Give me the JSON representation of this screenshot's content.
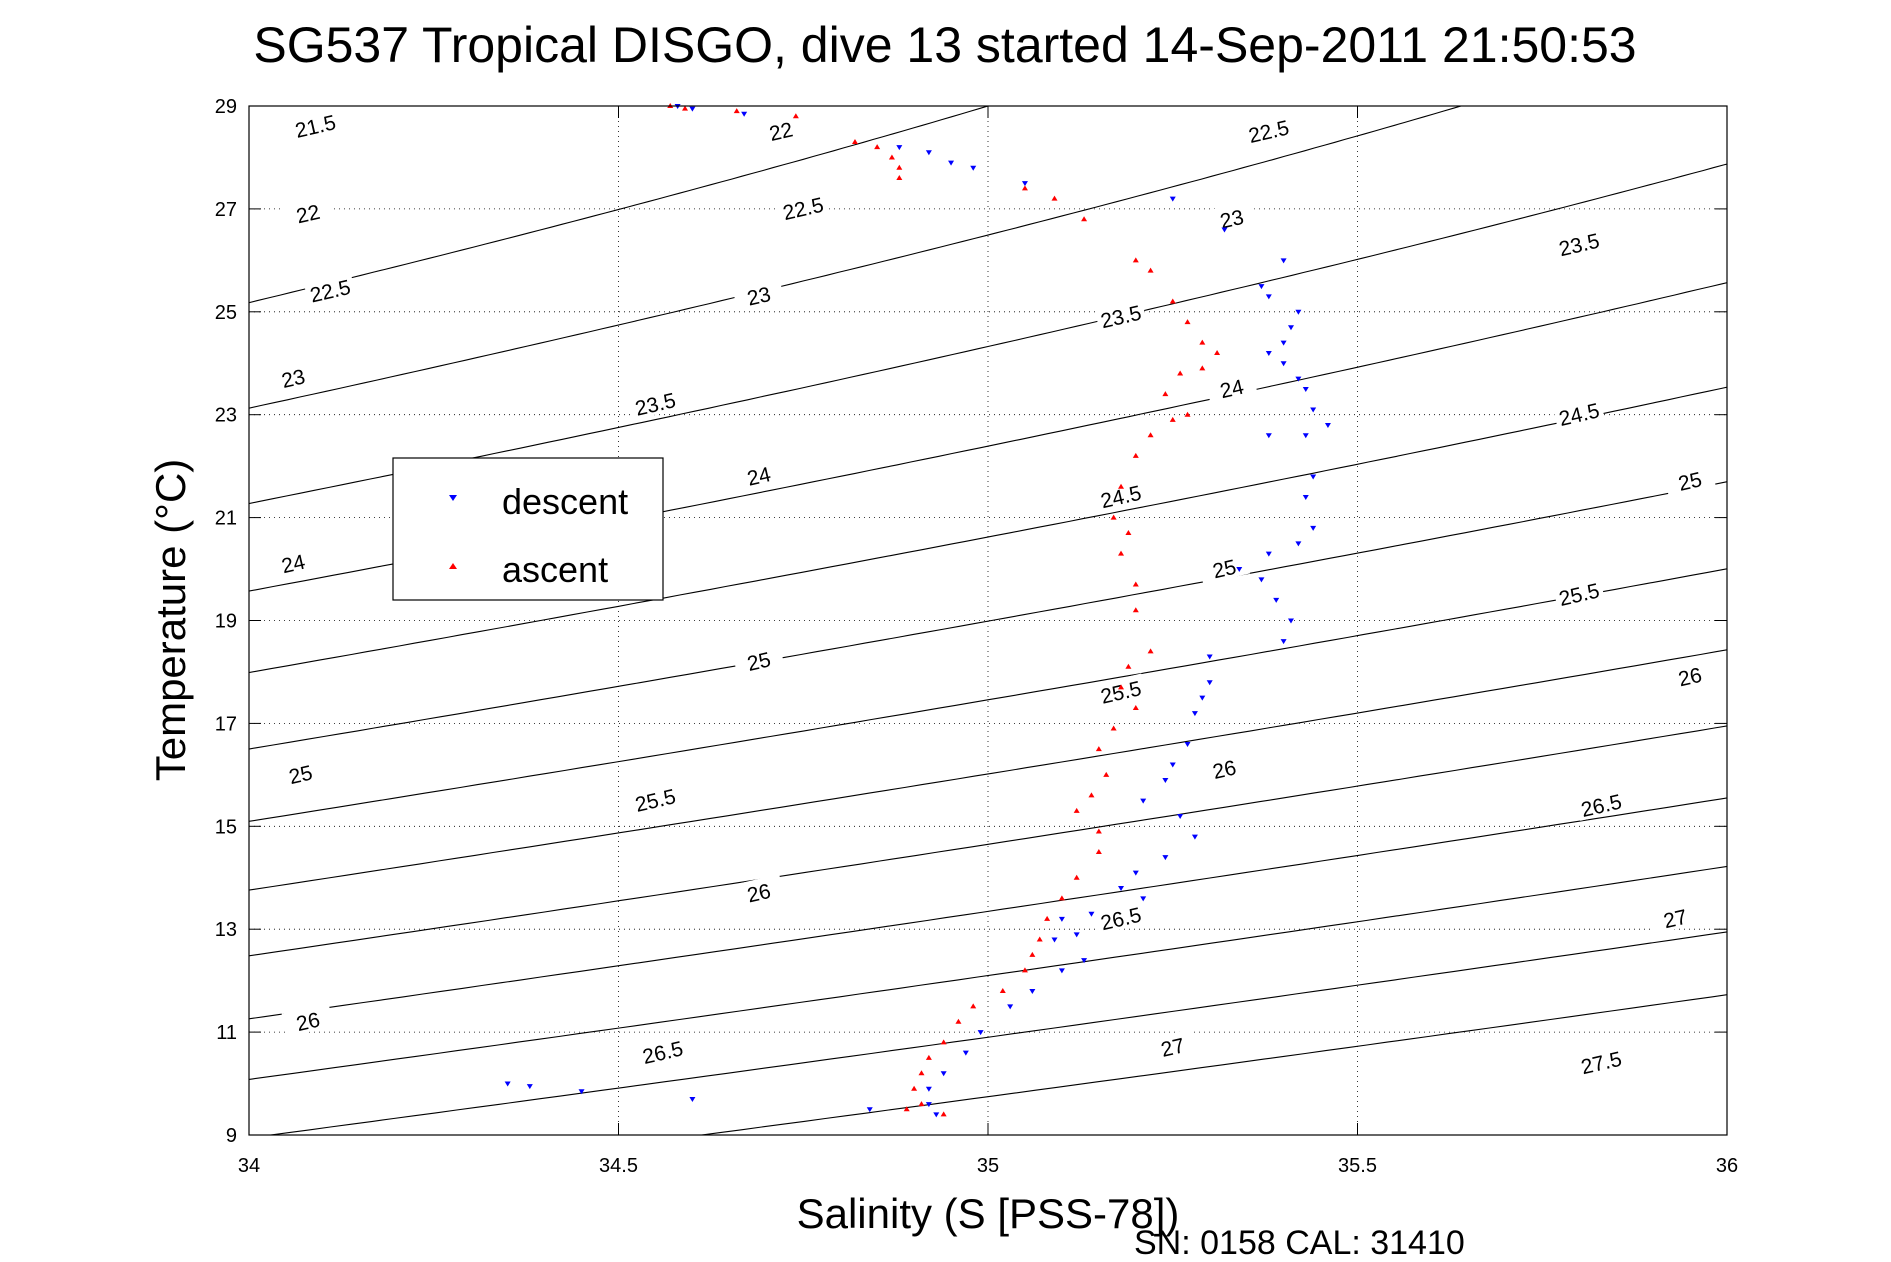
{
  "chart_data": {
    "type": "scatter",
    "title": "SG537 Tropical DISGO, dive 13 started 14-Sep-2011 21:50:53",
    "xlabel": "Salinity (S [PSS-78])",
    "ylabel": "Temperature (°C)",
    "xlim": [
      34,
      36
    ],
    "ylim": [
      9,
      29
    ],
    "xticks": [
      34,
      34.5,
      35,
      35.5,
      36
    ],
    "xtick_labels": [
      "34",
      "34.5",
      "35",
      "35.5",
      "36"
    ],
    "yticks": [
      9,
      11,
      13,
      15,
      17,
      19,
      21,
      23,
      25,
      27,
      29
    ],
    "ytick_labels": [
      "9",
      "11",
      "13",
      "15",
      "17",
      "19",
      "21",
      "23",
      "25",
      "27",
      "29"
    ],
    "grid": true,
    "legend_position": "left",
    "footer": "SN: 0158  CAL: 31410",
    "contours": {
      "levels": [
        21.5,
        22,
        22.5,
        23,
        23.5,
        24,
        24.5,
        25,
        25.5,
        26,
        26.5,
        27,
        27.5
      ],
      "color": "#000000",
      "label_points": [
        {
          "label": "21.5",
          "x": 34.09,
          "y": 28.6
        },
        {
          "label": "22",
          "x": 34.72,
          "y": 28.5
        },
        {
          "label": "22.5",
          "x": 35.38,
          "y": 28.5
        },
        {
          "label": "22",
          "x": 34.08,
          "y": 26.9
        },
        {
          "label": "22.5",
          "x": 34.75,
          "y": 27.0
        },
        {
          "label": "23",
          "x": 35.33,
          "y": 26.8
        },
        {
          "label": "23.5",
          "x": 35.8,
          "y": 26.3
        },
        {
          "label": "22.5",
          "x": 34.11,
          "y": 25.4
        },
        {
          "label": "23",
          "x": 34.69,
          "y": 25.3
        },
        {
          "label": "23.5",
          "x": 35.18,
          "y": 24.9
        },
        {
          "label": "23",
          "x": 34.06,
          "y": 23.7
        },
        {
          "label": "23.5",
          "x": 34.55,
          "y": 23.2
        },
        {
          "label": "24",
          "x": 35.33,
          "y": 23.5
        },
        {
          "label": "24.5",
          "x": 35.8,
          "y": 23.0
        },
        {
          "label": "24",
          "x": 34.69,
          "y": 21.8
        },
        {
          "label": "24.5",
          "x": 35.18,
          "y": 21.4
        },
        {
          "label": "25",
          "x": 35.95,
          "y": 21.7
        },
        {
          "label": "24",
          "x": 34.06,
          "y": 20.1
        },
        {
          "label": "25",
          "x": 35.32,
          "y": 20.0
        },
        {
          "label": "25.5",
          "x": 35.8,
          "y": 19.5
        },
        {
          "label": "25",
          "x": 34.69,
          "y": 18.2
        },
        {
          "label": "25.5",
          "x": 35.18,
          "y": 17.6
        },
        {
          "label": "26",
          "x": 35.95,
          "y": 17.9
        },
        {
          "label": "25",
          "x": 34.07,
          "y": 16.0
        },
        {
          "label": "26",
          "x": 35.32,
          "y": 16.1
        },
        {
          "label": "26.5",
          "x": 35.83,
          "y": 15.4
        },
        {
          "label": "25.5",
          "x": 34.55,
          "y": 15.5
        },
        {
          "label": "26",
          "x": 34.69,
          "y": 13.7
        },
        {
          "label": "26.5",
          "x": 35.18,
          "y": 13.2
        },
        {
          "label": "27",
          "x": 35.93,
          "y": 13.2
        },
        {
          "label": "26",
          "x": 34.08,
          "y": 11.2
        },
        {
          "label": "26.5",
          "x": 34.56,
          "y": 10.6
        },
        {
          "label": "27",
          "x": 35.25,
          "y": 10.7
        },
        {
          "label": "27.5",
          "x": 35.83,
          "y": 10.4
        }
      ]
    },
    "series": [
      {
        "name": "descent",
        "color": "#0000ff",
        "marker": "triangle-down",
        "points": [
          [
            34.58,
            29.0
          ],
          [
            34.6,
            28.95
          ],
          [
            34.67,
            28.85
          ],
          [
            34.88,
            28.2
          ],
          [
            34.92,
            28.1
          ],
          [
            34.95,
            27.9
          ],
          [
            34.98,
            27.8
          ],
          [
            35.05,
            27.5
          ],
          [
            35.25,
            27.2
          ],
          [
            35.32,
            26.6
          ],
          [
            35.4,
            26.0
          ],
          [
            35.37,
            25.5
          ],
          [
            35.38,
            25.3
          ],
          [
            35.42,
            25.0
          ],
          [
            35.41,
            24.7
          ],
          [
            35.4,
            24.4
          ],
          [
            35.38,
            24.2
          ],
          [
            35.4,
            24.0
          ],
          [
            35.42,
            23.7
          ],
          [
            35.43,
            23.5
          ],
          [
            35.44,
            23.1
          ],
          [
            35.46,
            22.8
          ],
          [
            35.43,
            22.6
          ],
          [
            35.38,
            22.6
          ],
          [
            35.44,
            21.8
          ],
          [
            35.43,
            21.4
          ],
          [
            35.44,
            20.8
          ],
          [
            35.42,
            20.5
          ],
          [
            35.38,
            20.3
          ],
          [
            35.34,
            20.0
          ],
          [
            35.37,
            19.8
          ],
          [
            35.39,
            19.4
          ],
          [
            35.41,
            19.0
          ],
          [
            35.4,
            18.6
          ],
          [
            35.3,
            18.3
          ],
          [
            35.3,
            17.8
          ],
          [
            35.29,
            17.5
          ],
          [
            35.28,
            17.2
          ],
          [
            35.27,
            16.6
          ],
          [
            35.25,
            16.2
          ],
          [
            35.24,
            15.9
          ],
          [
            35.21,
            15.5
          ],
          [
            35.26,
            15.2
          ],
          [
            35.28,
            14.8
          ],
          [
            35.24,
            14.4
          ],
          [
            35.2,
            14.1
          ],
          [
            35.18,
            13.8
          ],
          [
            35.21,
            13.6
          ],
          [
            35.14,
            13.3
          ],
          [
            35.1,
            13.2
          ],
          [
            35.12,
            12.9
          ],
          [
            35.09,
            12.8
          ],
          [
            35.13,
            12.4
          ],
          [
            35.1,
            12.2
          ],
          [
            35.06,
            11.8
          ],
          [
            35.03,
            11.5
          ],
          [
            34.99,
            11.0
          ],
          [
            34.97,
            10.6
          ],
          [
            34.94,
            10.2
          ],
          [
            34.92,
            9.9
          ],
          [
            34.92,
            9.6
          ],
          [
            34.93,
            9.4
          ],
          [
            34.84,
            9.5
          ],
          [
            34.6,
            9.7
          ],
          [
            34.45,
            9.85
          ],
          [
            34.38,
            9.95
          ],
          [
            34.35,
            10.0
          ]
        ]
      },
      {
        "name": "ascent",
        "color": "#ff0000",
        "marker": "triangle-up",
        "points": [
          [
            34.57,
            29.0
          ],
          [
            34.59,
            28.95
          ],
          [
            34.66,
            28.9
          ],
          [
            34.74,
            28.8
          ],
          [
            34.82,
            28.3
          ],
          [
            34.85,
            28.2
          ],
          [
            34.87,
            28.0
          ],
          [
            34.88,
            27.8
          ],
          [
            34.88,
            27.6
          ],
          [
            35.05,
            27.4
          ],
          [
            35.09,
            27.2
          ],
          [
            35.13,
            26.8
          ],
          [
            35.2,
            26.0
          ],
          [
            35.22,
            25.8
          ],
          [
            35.25,
            25.2
          ],
          [
            35.27,
            24.8
          ],
          [
            35.29,
            24.4
          ],
          [
            35.31,
            24.2
          ],
          [
            35.29,
            23.9
          ],
          [
            35.26,
            23.8
          ],
          [
            35.24,
            23.4
          ],
          [
            35.27,
            23.0
          ],
          [
            35.25,
            22.9
          ],
          [
            35.22,
            22.6
          ],
          [
            35.2,
            22.2
          ],
          [
            35.18,
            21.6
          ],
          [
            35.17,
            21.0
          ],
          [
            35.19,
            20.7
          ],
          [
            35.18,
            20.3
          ],
          [
            35.2,
            19.7
          ],
          [
            35.2,
            19.2
          ],
          [
            35.22,
            18.4
          ],
          [
            35.19,
            18.1
          ],
          [
            35.18,
            17.7
          ],
          [
            35.2,
            17.3
          ],
          [
            35.17,
            16.9
          ],
          [
            35.15,
            16.5
          ],
          [
            35.16,
            16.0
          ],
          [
            35.14,
            15.6
          ],
          [
            35.12,
            15.3
          ],
          [
            35.15,
            14.9
          ],
          [
            35.15,
            14.5
          ],
          [
            35.12,
            14.0
          ],
          [
            35.1,
            13.6
          ],
          [
            35.08,
            13.2
          ],
          [
            35.07,
            12.8
          ],
          [
            35.06,
            12.5
          ],
          [
            35.05,
            12.2
          ],
          [
            35.02,
            11.8
          ],
          [
            34.98,
            11.5
          ],
          [
            34.96,
            11.2
          ],
          [
            34.94,
            10.8
          ],
          [
            34.92,
            10.5
          ],
          [
            34.91,
            10.2
          ],
          [
            34.9,
            9.9
          ],
          [
            34.91,
            9.6
          ],
          [
            34.89,
            9.5
          ],
          [
            34.94,
            9.4
          ]
        ]
      }
    ]
  }
}
